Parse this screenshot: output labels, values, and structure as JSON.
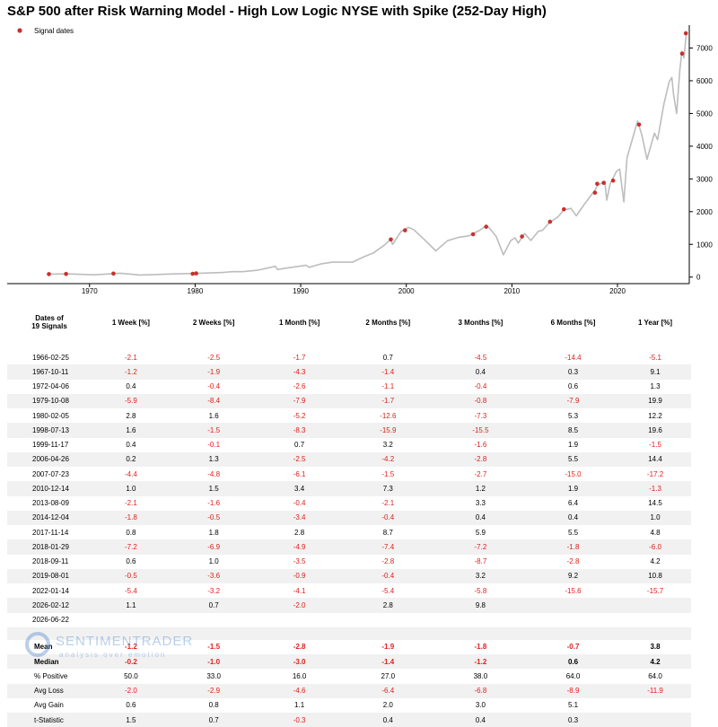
{
  "chart_data": {
    "type": "line",
    "title": "S&P 500 after Risk Warning Model -  High Low Logic NYSE with Spike (252-Day High)",
    "legend": {
      "label": "Signal dates",
      "placement": "top-left",
      "marker_color": "#c8302c"
    },
    "line_color": "#bdbdbd",
    "x_ticks": [
      1970,
      1980,
      1990,
      2000,
      2010,
      2020
    ],
    "y_ticks": [
      0,
      1000,
      2000,
      3000,
      4000,
      5000,
      6000,
      7000
    ],
    "xlim": [
      1962.2,
      2026.8
    ],
    "ylim": [
      -200,
      7700
    ],
    "y_axis_side": "right",
    "series": [
      {
        "x": [
          1966.0,
          1968.0,
          1970.4,
          1972.9,
          1974.8,
          1978.0,
          1980.2,
          1982.6,
          1983.5,
          1984.5,
          1985.9,
          1987.6,
          1987.8,
          1988.5,
          1990.5,
          1990.8,
          1991.9,
          1993.0,
          1994.9,
          1995.9,
          1996.9,
          1997.9,
          1998.5,
          1998.7,
          1999.5,
          2000.2,
          2000.7,
          2001.7,
          2002.8,
          2003.9,
          2004.9,
          2005.9,
          2006.9,
          2007.5,
          2007.8,
          2008.5,
          2009.2,
          2009.9,
          2010.3,
          2010.6,
          2011.2,
          2011.8,
          2012.5,
          2012.9,
          2013.5,
          2014.4,
          2014.9,
          2015.6,
          2016.1,
          2016.9,
          2017.9,
          2018.1,
          2018.8,
          2018.99,
          2019.3,
          2019.9,
          2020.2,
          2020.6,
          2020.9,
          2021.9,
          2022.3,
          2022.8,
          2023.5,
          2023.8,
          2024.4,
          2024.9,
          2025.15,
          2025.3,
          2025.6,
          2025.9,
          2026.1,
          2026.3,
          2026.5
        ],
        "y": [
          92,
          96,
          70,
          118,
          63,
          96,
          114,
          140,
          165,
          165,
          210,
          330,
          230,
          270,
          360,
          300,
          400,
          455,
          455,
          610,
          740,
          970,
          1150,
          1000,
          1390,
          1520,
          1450,
          1150,
          800,
          1110,
          1210,
          1260,
          1420,
          1550,
          1520,
          1250,
          680,
          1120,
          1200,
          1040,
          1330,
          1120,
          1400,
          1430,
          1650,
          1850,
          2050,
          2100,
          1870,
          2240,
          2670,
          2800,
          2920,
          2350,
          2850,
          3230,
          3300,
          2300,
          3640,
          4770,
          4350,
          3600,
          4400,
          4200,
          5300,
          5970,
          6100,
          5600,
          5000,
          6300,
          6900,
          6700,
          7400
        ]
      }
    ],
    "signals": [
      {
        "date": "1966-02-25",
        "y": 92
      },
      {
        "date": "1967-10-11",
        "y": 96
      },
      {
        "date": "1972-04-06",
        "y": 108
      },
      {
        "date": "1979-10-08",
        "y": 102
      },
      {
        "date": "1980-02-05",
        "y": 114
      },
      {
        "date": "1998-07-13",
        "y": 1150
      },
      {
        "date": "1999-11-17",
        "y": 1430
      },
      {
        "date": "2006-04-26",
        "y": 1310
      },
      {
        "date": "2007-07-23",
        "y": 1540
      },
      {
        "date": "2010-12-14",
        "y": 1240
      },
      {
        "date": "2013-08-09",
        "y": 1690
      },
      {
        "date": "2014-12-04",
        "y": 2070
      },
      {
        "date": "2017-11-14",
        "y": 2580
      },
      {
        "date": "2018-01-29",
        "y": 2850
      },
      {
        "date": "2018-09-11",
        "y": 2880
      },
      {
        "date": "2019-08-01",
        "y": 2950
      },
      {
        "date": "2022-01-14",
        "y": 4660
      },
      {
        "date": "2026-02-12",
        "y": 6830
      },
      {
        "date": "2026-06-22",
        "y": 7450
      }
    ]
  },
  "table": {
    "corner_label": "Dates of\n19 Signals",
    "headers": [
      "1 Week [%]",
      "2 Weeks [%]",
      "1 Month [%]",
      "2 Months [%]",
      "3 Months [%]",
      "6 Months [%]",
      "1 Year [%]"
    ],
    "rows": [
      {
        "date": "1966-02-25",
        "values": [
          "-2.1",
          "-2.5",
          "-1.7",
          "0.7",
          "-4.5",
          "-14.4",
          "-5.1"
        ]
      },
      {
        "date": "1967-10-11",
        "values": [
          "-1.2",
          "-1.9",
          "-4.3",
          "-1.4",
          "0.4",
          "0.3",
          "9.1"
        ]
      },
      {
        "date": "1972-04-06",
        "values": [
          "0.4",
          "-0.4",
          "-2.6",
          "-1.1",
          "-0.4",
          "0.6",
          "1.3"
        ]
      },
      {
        "date": "1979-10-08",
        "values": [
          "-5.9",
          "-8.4",
          "-7.9",
          "-1.7",
          "-0.8",
          "-7.9",
          "19.9"
        ]
      },
      {
        "date": "1980-02-05",
        "values": [
          "2.8",
          "1.6",
          "-5.2",
          "-12.6",
          "-7.3",
          "5.3",
          "12.2"
        ]
      },
      {
        "date": "1998-07-13",
        "values": [
          "1.6",
          "-1.5",
          "-8.3",
          "-15.9",
          "-15.5",
          "8.5",
          "19.6"
        ]
      },
      {
        "date": "1999-11-17",
        "values": [
          "0.4",
          "-0.1",
          "0.7",
          "3.2",
          "-1.6",
          "1.9",
          "-1.5"
        ]
      },
      {
        "date": "2006-04-26",
        "values": [
          "0.2",
          "1.3",
          "-2.5",
          "-4.2",
          "-2.8",
          "5.5",
          "14.4"
        ]
      },
      {
        "date": "2007-07-23",
        "values": [
          "-4.4",
          "-4.8",
          "-6.1",
          "-1.5",
          "-2.7",
          "-15.0",
          "-17.2"
        ]
      },
      {
        "date": "2010-12-14",
        "values": [
          "1.0",
          "1.5",
          "3.4",
          "7.3",
          "1.2",
          "1.9",
          "-1.3"
        ]
      },
      {
        "date": "2013-08-09",
        "values": [
          "-2.1",
          "-1.6",
          "-0.4",
          "-2.1",
          "3.3",
          "6.4",
          "14.5"
        ]
      },
      {
        "date": "2014-12-04",
        "values": [
          "-1.8",
          "-0.5",
          "-3.4",
          "-0.4",
          "0.4",
          "0.4",
          "1.0"
        ]
      },
      {
        "date": "2017-11-14",
        "values": [
          "0.8",
          "1.8",
          "2.8",
          "8.7",
          "5.9",
          "5.5",
          "4.8"
        ]
      },
      {
        "date": "2018-01-29",
        "values": [
          "-7.2",
          "-6.9",
          "-4.9",
          "-7.4",
          "-7.2",
          "-1.8",
          "-6.0"
        ]
      },
      {
        "date": "2018-09-11",
        "values": [
          "0.6",
          "1.0",
          "-3.5",
          "-2.8",
          "-8.7",
          "-2.8",
          "4.2"
        ]
      },
      {
        "date": "2019-08-01",
        "values": [
          "-0.5",
          "-3.6",
          "-0.9",
          "-0.4",
          "3.2",
          "9.2",
          "10.8"
        ]
      },
      {
        "date": "2022-01-14",
        "values": [
          "-5.4",
          "-3.2",
          "-4.1",
          "-5.4",
          "-5.8",
          "-15.6",
          "-15.7"
        ]
      },
      {
        "date": "2026-02-12",
        "values": [
          "1.1",
          "0.7",
          "-2.0",
          "2.8",
          "9.8",
          "",
          ""
        ]
      },
      {
        "date": "2026-06-22",
        "values": [
          "",
          "",
          "",
          "",
          "",
          "",
          ""
        ]
      }
    ],
    "stats": [
      {
        "label": "Mean",
        "bold": true,
        "values": [
          "-1.2",
          "-1.5",
          "-2.8",
          "-1.9",
          "-1.8",
          "-0.7",
          "3.8"
        ]
      },
      {
        "label": "Median",
        "bold": true,
        "values": [
          "-0.2",
          "-1.0",
          "-3.0",
          "-1.4",
          "-1.2",
          "0.6",
          "4.2"
        ]
      },
      {
        "label": "% Positive",
        "bold": false,
        "values": [
          "50.0",
          "33.0",
          "16.0",
          "27.0",
          "38.0",
          "64.0",
          "64.0"
        ]
      },
      {
        "label": "Avg Loss",
        "bold": false,
        "values": [
          "-2.0",
          "-2.9",
          "-4.6",
          "-6.4",
          "-6.8",
          "-8.9",
          "-11.9"
        ]
      },
      {
        "label": "Avg Gain",
        "bold": false,
        "values": [
          "0.6",
          "0.8",
          "1.1",
          "2.0",
          "3.0",
          "5.1",
          ""
        ]
      },
      {
        "label": "t-Statistic",
        "bold": false,
        "values": [
          "1.5",
          "0.7",
          "-0.3",
          "0.4",
          "0.4",
          "0.3",
          ""
        ]
      }
    ]
  },
  "watermark": {
    "name": "SENTIMENTRADER",
    "tagline": "analysis over emotion"
  }
}
